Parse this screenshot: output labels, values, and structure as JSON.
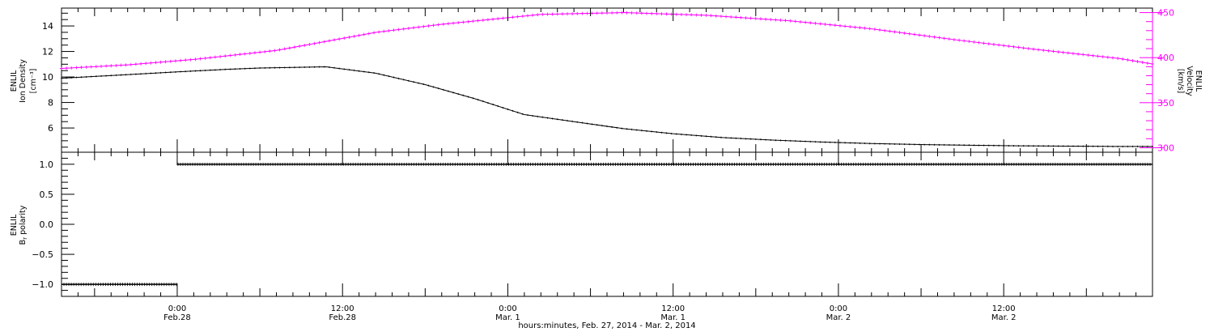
{
  "chart_data": [
    {
      "type": "line",
      "panel": "top",
      "y_left_label": [
        "ENLIL",
        "Ion Density",
        "[cm⁻³]"
      ],
      "y_right_label": [
        "ENLIL",
        "Velocity",
        "[km/s]"
      ],
      "y_left_range": [
        4.1,
        15.4
      ],
      "y_left_ticks": [
        6,
        8,
        10,
        12,
        14
      ],
      "y_right_range": [
        295,
        455
      ],
      "y_right_ticks": [
        300,
        350,
        400,
        450
      ],
      "x_unit": "hours since 2014-02-27 00:00 UT",
      "x_range": [
        14,
        80
      ],
      "series": [
        {
          "name": "Ion Density",
          "axis": "left",
          "color": "#000000",
          "x": [
            14,
            21,
            24,
            26,
            30,
            33,
            36,
            39,
            42,
            45,
            48,
            51,
            54,
            57,
            60,
            63,
            66,
            69,
            72,
            75,
            78,
            80
          ],
          "values": [
            9.9,
            10.4,
            10.6,
            10.7,
            10.8,
            10.3,
            9.4,
            8.3,
            7.05,
            6.5,
            5.95,
            5.55,
            5.25,
            5.05,
            4.9,
            4.78,
            4.7,
            4.65,
            4.6,
            4.58,
            4.55,
            4.55
          ]
        },
        {
          "name": "Velocity",
          "axis": "right",
          "color": "#ff00ff",
          "x": [
            14,
            18,
            22,
            27,
            30,
            33,
            37,
            43,
            48,
            53,
            58,
            63,
            68,
            73,
            78,
            80
          ],
          "values": [
            388,
            392,
            398,
            408,
            418,
            428,
            437,
            448,
            450,
            447,
            441,
            432,
            420,
            409,
            399,
            393
          ]
        }
      ]
    },
    {
      "type": "line",
      "panel": "bottom",
      "y_label": [
        "ENLIL",
        "B",
        "r",
        " polarity"
      ],
      "y_range": [
        -1.2,
        1.2
      ],
      "y_ticks": [
        -1.0,
        -0.5,
        0.0,
        0.5,
        1.0
      ],
      "y_tick_labels": [
        "−1.0",
        "−0.5",
        "0.0",
        "0.5",
        "1.0"
      ],
      "x_unit": "hours since 2014-02-27 00:00 UT",
      "x_range": [
        14,
        80
      ],
      "series": [
        {
          "name": "Br polarity",
          "color": "#000000",
          "x": [
            14,
            20.95,
            21.05,
            80
          ],
          "values": [
            -1,
            -1,
            1,
            1
          ]
        }
      ]
    }
  ],
  "x_axis": {
    "ticks": [
      {
        "x": 21,
        "time": "0:00",
        "date": "Feb.28"
      },
      {
        "x": 31,
        "time": "12:00",
        "date": "Feb.28"
      },
      {
        "x": 41,
        "time": "0:00",
        "date": "Mar. 1"
      },
      {
        "x": 51,
        "time": "12:00",
        "date": "Mar. 1"
      },
      {
        "x": 61,
        "time": "0:00",
        "date": "Mar. 2"
      },
      {
        "x": 71,
        "time": "12:00",
        "date": "Mar. 2"
      }
    ],
    "label": "hours:minutes, Feb. 27, 2014 - Mar.  2, 2014"
  },
  "colors": {
    "density": "#000000",
    "velocity": "#ff00ff",
    "polarity": "#000000",
    "axes": "#000000"
  }
}
